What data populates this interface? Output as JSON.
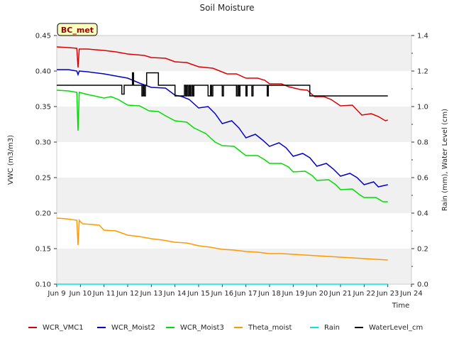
{
  "chart_data": {
    "type": "line",
    "title": "Soil Moisture",
    "badge": "BC_met",
    "xlabel": "Time",
    "ylabel": "VWC (m3/m3)",
    "y2label": "Rain (mm), Water Level (cm)",
    "xlim": [
      9,
      24
    ],
    "ylim": [
      0.1,
      0.45
    ],
    "y2lim": [
      0.0,
      1.4
    ],
    "x_ticks": [
      9,
      10,
      11,
      12,
      13,
      14,
      15,
      16,
      17,
      18,
      19,
      20,
      21,
      22,
      23,
      24
    ],
    "x_tick_labels": [
      "Jun 9",
      "Jun 10",
      "Jun 11",
      "Jun 12",
      "Jun 13",
      "Jun 14",
      "Jun 15",
      "Jun 16",
      "Jun 17",
      "Jun 18",
      "Jun 19",
      "Jun 20",
      "Jun 21",
      "Jun 22",
      "Jun 23",
      "Jun 24"
    ],
    "y_ticks": [
      0.1,
      0.15,
      0.2,
      0.25,
      0.3,
      0.35,
      0.4,
      0.45
    ],
    "y_tick_labels": [
      "0.10",
      "0.15",
      "0.20",
      "0.25",
      "0.30",
      "0.35",
      "0.40",
      "0.45"
    ],
    "y2_ticks": [
      0.0,
      0.2,
      0.4,
      0.6,
      0.8,
      1.0,
      1.2,
      1.4
    ],
    "y2_tick_labels": [
      "0.0",
      "0.2",
      "0.4",
      "0.6",
      "0.8",
      "1.0",
      "1.2",
      "1.4"
    ],
    "grid_bands": true,
    "legend_position": "bottom",
    "colors": {
      "band": "#f0f0f0",
      "axis": "#cccccc",
      "badge_fill": "#ffffc0"
    },
    "series": [
      {
        "name": "WCR_VMC1",
        "color": "#dd0000",
        "axis": "left",
        "x": [
          9.0,
          9.5,
          9.85,
          9.9,
          9.95,
          10.3,
          11.0,
          11.5,
          12.0,
          12.7,
          13.0,
          13.6,
          14.0,
          14.5,
          15.0,
          15.6,
          15.9,
          16.2,
          16.6,
          17.0,
          17.5,
          17.8,
          18.0,
          18.5,
          18.8,
          19.3,
          19.6,
          19.9,
          20.3,
          20.6,
          21.0,
          21.5,
          21.9,
          22.3,
          22.6,
          22.9,
          23.0
        ],
        "y": [
          0.434,
          0.433,
          0.432,
          0.405,
          0.431,
          0.431,
          0.429,
          0.427,
          0.424,
          0.422,
          0.419,
          0.418,
          0.413,
          0.412,
          0.406,
          0.404,
          0.4,
          0.396,
          0.396,
          0.39,
          0.39,
          0.387,
          0.382,
          0.382,
          0.378,
          0.374,
          0.373,
          0.364,
          0.364,
          0.36,
          0.351,
          0.352,
          0.338,
          0.34,
          0.336,
          0.33,
          0.331
        ]
      },
      {
        "name": "WCR_Moist2",
        "color": "#0000cc",
        "axis": "left",
        "x": [
          9.0,
          9.5,
          9.85,
          9.9,
          9.95,
          10.3,
          11.0,
          11.5,
          12.0,
          12.5,
          13.0,
          13.6,
          14.0,
          14.3,
          14.6,
          15.0,
          15.4,
          15.7,
          16.0,
          16.4,
          16.7,
          17.0,
          17.4,
          17.7,
          18.0,
          18.4,
          18.7,
          19.0,
          19.4,
          19.7,
          20.0,
          20.4,
          20.7,
          21.0,
          21.4,
          21.7,
          22.0,
          22.4,
          22.6,
          23.0
        ],
        "y": [
          0.402,
          0.402,
          0.4,
          0.395,
          0.4,
          0.399,
          0.396,
          0.393,
          0.39,
          0.383,
          0.377,
          0.376,
          0.366,
          0.364,
          0.36,
          0.348,
          0.35,
          0.34,
          0.326,
          0.33,
          0.32,
          0.306,
          0.311,
          0.303,
          0.294,
          0.299,
          0.292,
          0.28,
          0.284,
          0.278,
          0.266,
          0.27,
          0.262,
          0.252,
          0.256,
          0.25,
          0.24,
          0.244,
          0.237,
          0.24
        ]
      },
      {
        "name": "WCR_Moist3",
        "color": "#00dd00",
        "axis": "left",
        "x": [
          9.0,
          9.5,
          9.85,
          9.9,
          9.95,
          10.3,
          11.0,
          11.3,
          11.6,
          12.0,
          12.5,
          12.9,
          13.3,
          13.6,
          14.0,
          14.5,
          14.8,
          15.3,
          15.7,
          16.0,
          16.5,
          16.8,
          17.0,
          17.5,
          17.8,
          18.0,
          18.5,
          18.8,
          19.0,
          19.5,
          19.8,
          20.0,
          20.5,
          20.8,
          21.0,
          21.5,
          21.8,
          22.0,
          22.5,
          22.8,
          23.0
        ],
        "y": [
          0.373,
          0.372,
          0.37,
          0.316,
          0.37,
          0.367,
          0.362,
          0.364,
          0.36,
          0.352,
          0.351,
          0.344,
          0.343,
          0.337,
          0.33,
          0.328,
          0.32,
          0.312,
          0.3,
          0.295,
          0.294,
          0.286,
          0.281,
          0.281,
          0.275,
          0.27,
          0.27,
          0.265,
          0.258,
          0.259,
          0.253,
          0.246,
          0.247,
          0.24,
          0.233,
          0.234,
          0.226,
          0.222,
          0.222,
          0.216,
          0.216
        ]
      },
      {
        "name": "Theta_moist",
        "color": "#ff9900",
        "axis": "left",
        "x": [
          9.0,
          9.4,
          9.85,
          9.9,
          9.95,
          10.0,
          10.1,
          10.5,
          10.8,
          11.0,
          11.5,
          12.0,
          12.5,
          13.0,
          13.5,
          14.0,
          14.5,
          15.0,
          15.5,
          16.0,
          16.5,
          17.0,
          17.5,
          18.0,
          18.5,
          19.0,
          19.5,
          20.0,
          20.5,
          21.0,
          21.5,
          22.0,
          22.5,
          23.0
        ],
        "y": [
          0.193,
          0.192,
          0.19,
          0.155,
          0.19,
          0.188,
          0.185,
          0.184,
          0.183,
          0.176,
          0.175,
          0.169,
          0.167,
          0.164,
          0.162,
          0.159,
          0.158,
          0.154,
          0.152,
          0.149,
          0.148,
          0.146,
          0.145,
          0.143,
          0.143,
          0.142,
          0.141,
          0.14,
          0.139,
          0.138,
          0.137,
          0.136,
          0.135,
          0.134
        ]
      },
      {
        "name": "Rain",
        "color": "#00e5e5",
        "axis": "right",
        "x": [
          9.0,
          23.0
        ],
        "y": [
          0.0,
          0.0
        ]
      },
      {
        "name": "WaterLevel_cm",
        "color": "#000000",
        "axis": "right",
        "x": [
          9.0,
          11.75,
          11.75,
          11.85,
          11.85,
          12.2,
          12.2,
          12.25,
          12.25,
          12.6,
          12.6,
          12.65,
          12.65,
          12.7,
          12.7,
          12.75,
          12.75,
          12.8,
          12.8,
          13.3,
          13.3,
          13.35,
          13.35,
          14.0,
          14.0,
          14.4,
          14.4,
          14.45,
          14.45,
          14.5,
          14.5,
          14.55,
          14.55,
          14.6,
          14.6,
          14.65,
          14.65,
          14.7,
          14.7,
          14.75,
          14.75,
          14.8,
          14.8,
          15.4,
          15.4,
          15.5,
          15.5,
          15.55,
          15.55,
          15.6,
          15.6,
          16.0,
          16.0,
          16.05,
          16.05,
          16.6,
          16.6,
          16.65,
          16.65,
          16.7,
          16.7,
          16.75,
          16.75,
          17.0,
          17.0,
          17.05,
          17.05,
          17.25,
          17.25,
          17.3,
          17.3,
          17.9,
          17.9,
          17.95,
          17.95,
          18.9,
          18.9,
          18.95,
          18.95,
          19.7,
          19.7,
          19.75,
          19.75,
          19.85,
          19.85,
          23.0
        ],
        "y": [
          1.12,
          1.12,
          1.07,
          1.07,
          1.12,
          1.12,
          1.19,
          1.19,
          1.12,
          1.12,
          1.06,
          1.06,
          1.12,
          1.12,
          1.06,
          1.06,
          1.12,
          1.12,
          1.19,
          1.19,
          1.12,
          1.12,
          1.12,
          1.12,
          1.06,
          1.06,
          1.12,
          1.12,
          1.06,
          1.06,
          1.12,
          1.12,
          1.06,
          1.06,
          1.12,
          1.12,
          1.06,
          1.06,
          1.12,
          1.12,
          1.06,
          1.06,
          1.12,
          1.12,
          1.06,
          1.06,
          1.12,
          1.12,
          1.06,
          1.06,
          1.12,
          1.12,
          1.06,
          1.06,
          1.12,
          1.12,
          1.06,
          1.06,
          1.12,
          1.12,
          1.06,
          1.06,
          1.12,
          1.12,
          1.06,
          1.06,
          1.12,
          1.12,
          1.06,
          1.06,
          1.12,
          1.12,
          1.06,
          1.06,
          1.12,
          1.12,
          1.12,
          1.12,
          1.12,
          1.12,
          1.06,
          1.06,
          1.06,
          1.06,
          1.06,
          1.06
        ]
      }
    ]
  }
}
